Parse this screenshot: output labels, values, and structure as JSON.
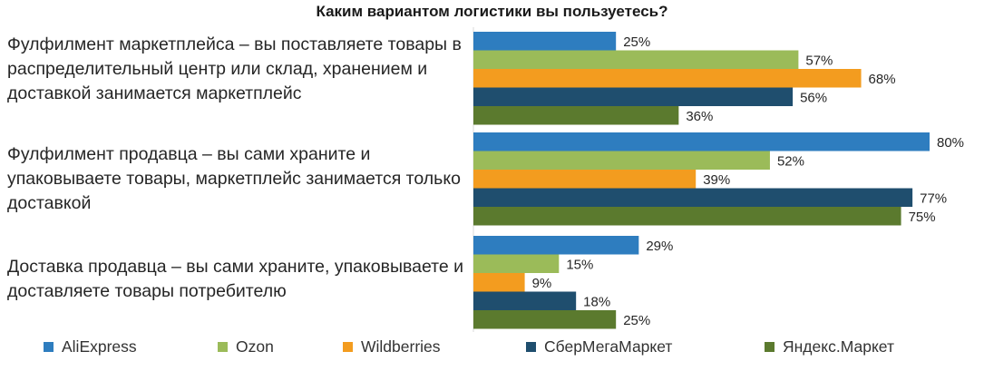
{
  "chart_data": {
    "type": "bar",
    "orientation": "horizontal",
    "title": "Каким вариантом логистики вы пользуетесь?",
    "categories": [
      "Фулфилмент маркетплейса – вы поставляете товары в распределительный центр или склад, хранением и доставкой занимается маркетплейс",
      "Фулфилмент продавца – вы сами храните и упаковываете товары, маркетплейс занимается только доставкой",
      "Доставка продавца – вы сами храните, упаковываете и доставляете товары потребителю"
    ],
    "series": [
      {
        "name": "AliExpress",
        "color": "#2e7dbf",
        "values": [
          25,
          80,
          29
        ]
      },
      {
        "name": "Ozon",
        "color": "#9bbb59",
        "values": [
          57,
          52,
          15
        ]
      },
      {
        "name": "Wildberries",
        "color": "#f39c1f",
        "values": [
          68,
          39,
          9
        ]
      },
      {
        "name": "СберМегаМаркет",
        "color": "#1f4e6e",
        "values": [
          56,
          77,
          18
        ]
      },
      {
        "name": "Яндекс.Маркет",
        "color": "#5b7a2e",
        "values": [
          36,
          75,
          25
        ]
      }
    ],
    "value_suffix": "%",
    "xlim": [
      0,
      80
    ],
    "grid": false,
    "legend_position": "bottom"
  }
}
